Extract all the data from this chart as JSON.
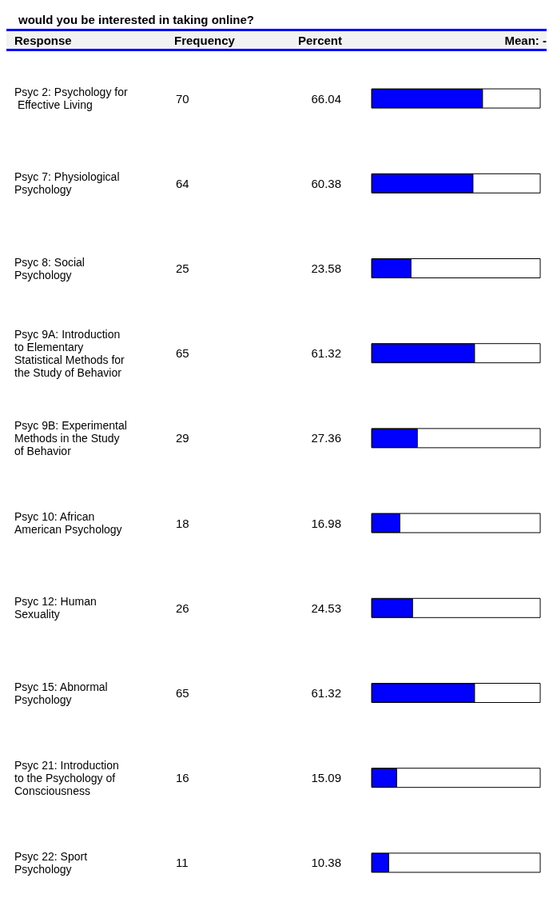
{
  "chart_data": {
    "type": "bar",
    "orientation": "horizontal",
    "title": "would you be interested in taking online?",
    "categories": [
      "Psyc 2: Psychology for Effective Living",
      "Psyc 7: Physiological Psychology",
      "Psyc 8: Social Psychology",
      "Psyc 9A: Introduction to Elementary Statistical Methods for the Study of Behavior",
      "Psyc 9B: Experimental Methods in the Study of Behavior",
      "Psyc 10: African American Psychology",
      "Psyc 12: Human Sexuality",
      "Psyc 15: Abnormal Psychology",
      "Psyc 21: Introduction to the Psychology of Consciousness",
      "Psyc 22: Sport Psychology"
    ],
    "values": [
      66.04,
      60.38,
      23.58,
      61.32,
      27.36,
      16.98,
      24.53,
      61.32,
      15.09,
      10.38
    ],
    "color": "#0000ff",
    "xlim": [
      0,
      100
    ],
    "tick_labels": "y",
    "data_labels": true,
    "annotations": [
      "Response",
      "Frequency",
      "Percent",
      "Mean: -",
      "70",
      "64",
      "25",
      "65",
      "29",
      "18",
      "26",
      "65",
      "16",
      "11"
    ]
  }
}
